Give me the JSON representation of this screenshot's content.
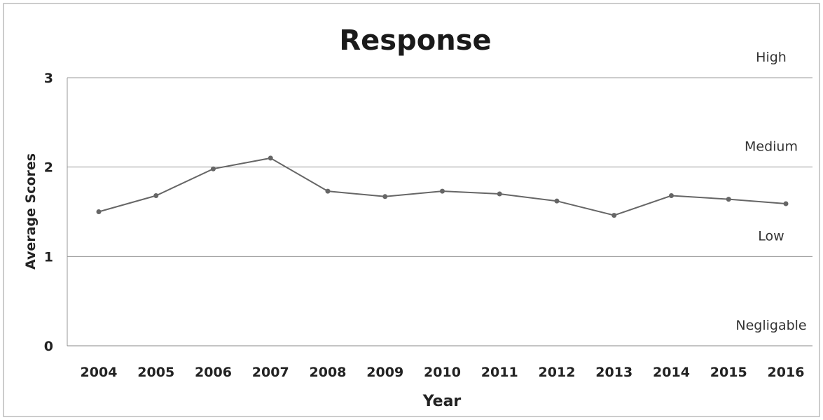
{
  "chart_data": {
    "type": "line",
    "title": "Response",
    "xlabel": "Year",
    "ylabel": "Average Scores",
    "ylim": [
      0,
      3
    ],
    "yticks": [
      "0",
      "1",
      "2",
      "3"
    ],
    "grid": "horizontal",
    "categories": [
      "2004",
      "2005",
      "2006",
      "2007",
      "2008",
      "2009",
      "2010",
      "2011",
      "2012",
      "2013",
      "2014",
      "2015",
      "2016"
    ],
    "values": [
      1.5,
      1.68,
      1.98,
      2.1,
      1.73,
      1.67,
      1.73,
      1.7,
      1.62,
      1.46,
      1.68,
      1.64,
      1.59
    ],
    "band_labels": [
      {
        "text": "High",
        "value": 3
      },
      {
        "text": "Medium",
        "value": 2
      },
      {
        "text": "Low",
        "value": 1
      },
      {
        "text": "Negligable",
        "value": 0
      }
    ],
    "line_color": "#666666"
  }
}
